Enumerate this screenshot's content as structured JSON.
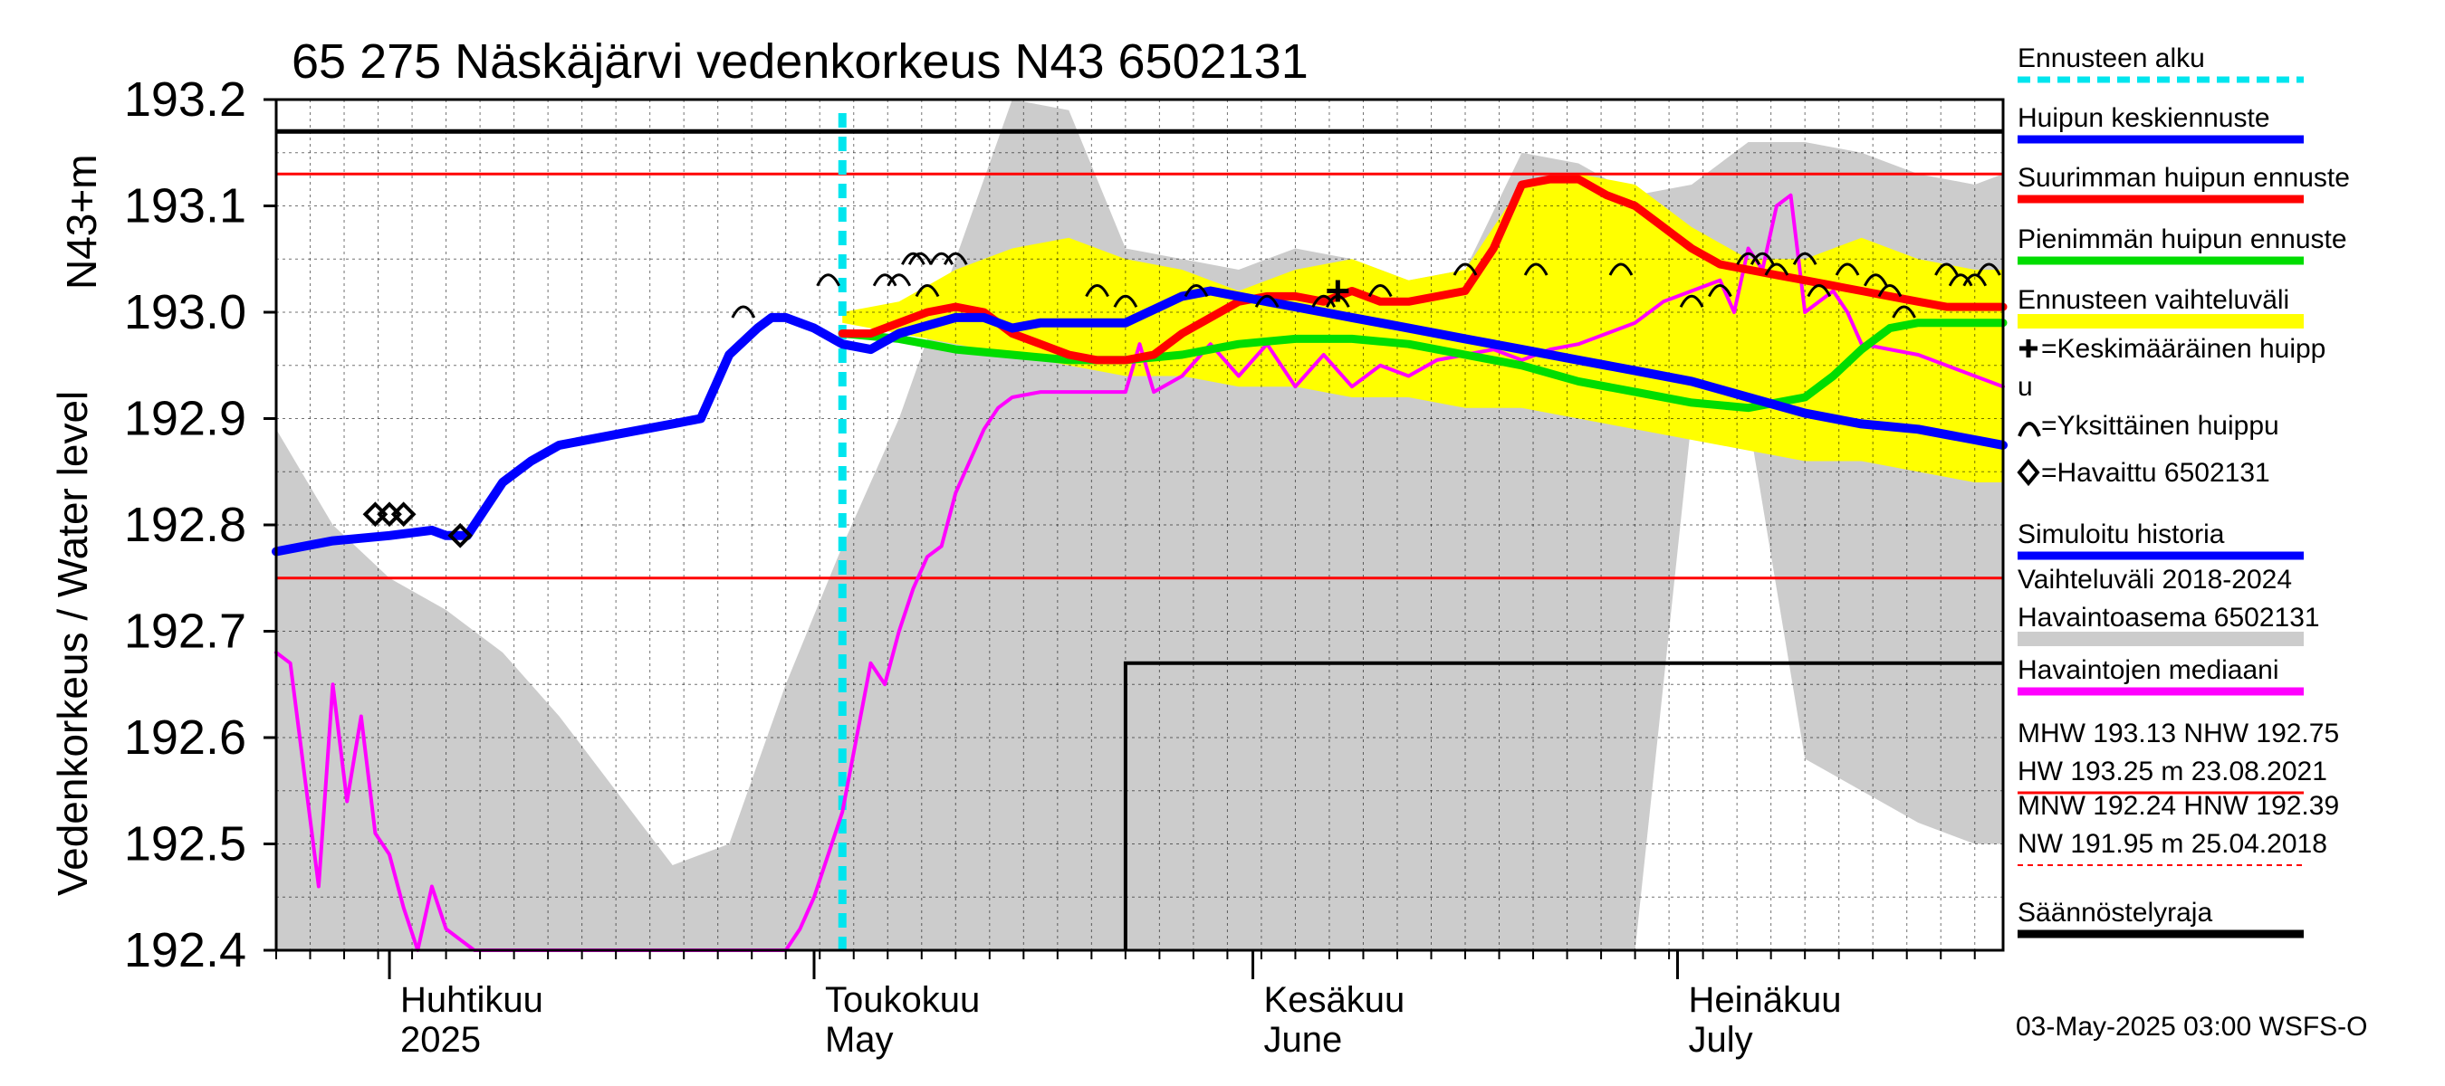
{
  "chart_data": {
    "type": "line",
    "title": "65 275 Näskäjärvi vedenkorkeus N43 6502131",
    "ylabel": "Vedenkorkeus / Water level",
    "yunit": "N43+m",
    "ylim": [
      192.4,
      193.2
    ],
    "yticks": [
      192.4,
      192.5,
      192.6,
      192.7,
      192.8,
      192.9,
      193.0,
      193.1,
      193.2
    ],
    "xlim_days": [
      0,
      122
    ],
    "x_axis_note": "x values are days since 2025-03-24",
    "month_labels": [
      {
        "line1": "Huhtikuu",
        "line2": "2025",
        "day": 8
      },
      {
        "line1": "Toukokuu",
        "line2": "May",
        "day": 38
      },
      {
        "line1": "Kesäkuu",
        "line2": "June",
        "day": 69
      },
      {
        "line1": "Heinäkuu",
        "line2": "July",
        "day": 99
      }
    ],
    "forecast_start_day": 40,
    "reference_lines": [
      {
        "name": "MHW",
        "value": 193.13,
        "color": "#ff0000"
      },
      {
        "name": "NHW",
        "value": 192.75,
        "color": "#ff0000"
      },
      {
        "name": "Säännöstelyraja upper",
        "value": 193.17,
        "color": "#000000"
      }
    ],
    "regulation_limit": {
      "x": [
        60,
        60,
        122
      ],
      "y": [
        192.4,
        192.67,
        192.67
      ]
    },
    "historical_range": {
      "x": [
        0,
        4,
        8,
        12,
        16,
        20,
        24,
        28,
        32,
        36,
        40,
        44,
        48,
        52,
        56,
        60,
        64,
        68,
        72,
        76,
        80,
        84,
        88,
        92,
        96,
        100,
        104,
        108,
        112,
        116,
        120,
        122
      ],
      "upper": [
        192.89,
        192.8,
        192.75,
        192.72,
        192.68,
        192.62,
        192.55,
        192.48,
        192.5,
        192.65,
        192.78,
        192.9,
        193.05,
        193.2,
        193.19,
        193.06,
        193.05,
        193.04,
        193.06,
        193.05,
        193.03,
        193.04,
        193.15,
        193.14,
        193.11,
        193.12,
        193.16,
        193.16,
        193.15,
        193.13,
        193.12,
        193.13
      ],
      "lower": [
        192.4,
        192.4,
        192.4,
        192.4,
        192.4,
        192.4,
        192.4,
        192.4,
        192.4,
        192.4,
        192.4,
        192.4,
        192.4,
        192.4,
        192.4,
        192.4,
        192.4,
        192.4,
        192.4,
        192.4,
        192.4,
        192.4,
        192.4,
        192.4,
        192.4,
        192.9,
        192.9,
        192.58,
        192.55,
        192.52,
        192.5,
        192.5
      ]
    },
    "forecast_range": {
      "x": [
        40,
        44,
        48,
        52,
        56,
        60,
        64,
        68,
        72,
        76,
        80,
        84,
        88,
        92,
        96,
        100,
        104,
        108,
        112,
        116,
        120,
        122
      ],
      "upper": [
        193.0,
        193.01,
        193.04,
        193.06,
        193.07,
        193.05,
        193.04,
        193.02,
        193.04,
        193.05,
        193.03,
        193.04,
        193.12,
        193.13,
        193.12,
        193.08,
        193.05,
        193.05,
        193.07,
        193.05,
        193.04,
        193.04
      ],
      "lower": [
        192.99,
        192.98,
        192.97,
        192.96,
        192.95,
        192.94,
        192.94,
        192.93,
        192.93,
        192.92,
        192.92,
        192.91,
        192.91,
        192.9,
        192.89,
        192.88,
        192.87,
        192.86,
        192.86,
        192.85,
        192.84,
        192.84
      ]
    },
    "series": [
      {
        "name": "Simuloitu historia",
        "color": "#0000ff",
        "x": [
          0,
          4,
          8,
          11,
          12,
          13.5,
          16,
          18,
          20,
          24,
          28,
          30,
          32,
          34,
          35,
          36,
          38,
          40,
          42,
          44,
          48,
          50,
          52,
          54,
          56,
          60,
          64,
          66,
          68,
          70,
          72,
          74,
          76,
          78,
          80,
          84,
          88,
          92,
          96,
          100,
          104,
          108,
          112,
          116,
          120,
          122
        ],
        "y": [
          192.775,
          192.785,
          192.79,
          192.795,
          192.79,
          192.79,
          192.84,
          192.86,
          192.875,
          192.885,
          192.895,
          192.9,
          192.96,
          192.985,
          192.995,
          192.995,
          192.985,
          192.97,
          192.965,
          192.98,
          192.995,
          192.995,
          192.985,
          192.99,
          192.99,
          192.99,
          193.015,
          193.02,
          193.015,
          193.01,
          193.005,
          193.0,
          192.995,
          192.99,
          192.985,
          192.975,
          192.965,
          192.955,
          192.945,
          192.935,
          192.92,
          192.905,
          192.895,
          192.89,
          192.88,
          192.875
        ]
      },
      {
        "name": "Suurimman huipun ennuste",
        "color": "#ff0000",
        "x": [
          40,
          42,
          44,
          46,
          48,
          50,
          52,
          54,
          56,
          58,
          60,
          62,
          64,
          66,
          68,
          70,
          72,
          74,
          76,
          78,
          80,
          82,
          84,
          86,
          88,
          90,
          92,
          94,
          96,
          98,
          100,
          102,
          104,
          106,
          108,
          110,
          112,
          114,
          116,
          118,
          120,
          122
        ],
        "y": [
          192.98,
          192.98,
          192.99,
          193.0,
          193.005,
          193.0,
          192.98,
          192.97,
          192.96,
          192.955,
          192.955,
          192.96,
          192.98,
          192.995,
          193.01,
          193.015,
          193.015,
          193.01,
          193.02,
          193.01,
          193.01,
          193.015,
          193.02,
          193.06,
          193.12,
          193.125,
          193.125,
          193.11,
          193.1,
          193.08,
          193.06,
          193.045,
          193.04,
          193.035,
          193.03,
          193.025,
          193.02,
          193.015,
          193.01,
          193.005,
          193.005,
          193.005
        ]
      },
      {
        "name": "Pienimmän huipun ennuste",
        "color": "#00dd00",
        "x": [
          40,
          44,
          48,
          52,
          56,
          60,
          64,
          68,
          72,
          76,
          80,
          84,
          88,
          92,
          96,
          100,
          104,
          108,
          110,
          112,
          114,
          116,
          118,
          120,
          122
        ],
        "y": [
          192.98,
          192.975,
          192.965,
          192.96,
          192.955,
          192.955,
          192.96,
          192.97,
          192.975,
          192.975,
          192.97,
          192.96,
          192.95,
          192.935,
          192.925,
          192.915,
          192.91,
          192.92,
          192.94,
          192.965,
          192.985,
          192.99,
          192.99,
          192.99,
          192.99
        ]
      },
      {
        "name": "Havaintojen mediaani",
        "color": "#ff00ff",
        "x": [
          0,
          1,
          3,
          4,
          5,
          6,
          7,
          8,
          9,
          10,
          11,
          12,
          13,
          14,
          15,
          16,
          36,
          37,
          38,
          39,
          40,
          41,
          42,
          43,
          44,
          45,
          46,
          47,
          48,
          49,
          50,
          51,
          52,
          54,
          56,
          58,
          60,
          61,
          62,
          64,
          66,
          68,
          70,
          72,
          74,
          76,
          78,
          80,
          82,
          84,
          86,
          88,
          90,
          92,
          94,
          96,
          98,
          100,
          102,
          103,
          104,
          105,
          106,
          107,
          108,
          110,
          111,
          112,
          114,
          116,
          118,
          120,
          122
        ],
        "y": [
          192.68,
          192.67,
          192.46,
          192.65,
          192.54,
          192.62,
          192.51,
          192.49,
          192.44,
          192.38,
          192.46,
          192.42,
          192.41,
          192.4,
          192.4,
          192.39,
          192.4,
          192.42,
          192.45,
          192.49,
          192.53,
          192.6,
          192.67,
          192.65,
          192.7,
          192.74,
          192.77,
          192.78,
          192.83,
          192.86,
          192.89,
          192.91,
          192.92,
          192.925,
          192.925,
          192.925,
          192.925,
          192.97,
          192.925,
          192.94,
          192.97,
          192.94,
          192.97,
          192.93,
          192.96,
          192.93,
          192.95,
          192.94,
          192.955,
          192.96,
          192.965,
          192.955,
          192.965,
          192.97,
          192.98,
          192.99,
          193.01,
          193.02,
          193.03,
          193.0,
          193.06,
          193.04,
          193.1,
          193.11,
          193.0,
          193.02,
          193.0,
          192.97,
          192.965,
          192.96,
          192.95,
          192.94,
          192.93
        ]
      }
    ],
    "observed_points": {
      "name": "Havaittu 6502131",
      "x": [
        7,
        8,
        9,
        13
      ],
      "y": [
        192.81,
        192.81,
        192.81,
        192.79
      ]
    },
    "mean_peak": {
      "name": "Keskimääräinen huippu",
      "x": [
        75
      ],
      "y": [
        193.02
      ]
    },
    "individual_peaks": {
      "name": "Yksittäinen huippu",
      "x": [
        33,
        39,
        43,
        44,
        45,
        45.5,
        46,
        47,
        48,
        58,
        60,
        65,
        70,
        74,
        75,
        78,
        84,
        89,
        95,
        100,
        102,
        104,
        105,
        106,
        108,
        109,
        111,
        113,
        114,
        115,
        118,
        119,
        120,
        121
      ],
      "y": [
        193.0,
        193.03,
        193.03,
        193.03,
        193.05,
        193.05,
        193.02,
        193.05,
        193.05,
        193.02,
        193.01,
        193.02,
        193.01,
        193.01,
        193.01,
        193.02,
        193.04,
        193.04,
        193.04,
        193.01,
        193.02,
        193.05,
        193.05,
        193.04,
        193.05,
        193.02,
        193.04,
        193.03,
        193.02,
        193.0,
        193.04,
        193.03,
        193.03,
        193.04
      ]
    },
    "legend": [
      {
        "label": "Ennusteen alku",
        "color": "#00e5ee",
        "style": "dash"
      },
      {
        "label": "Huipun keskiennuste",
        "color": "#0000ff",
        "style": "line"
      },
      {
        "label": "Suurimman huipun ennuste",
        "color": "#ff0000",
        "style": "line"
      },
      {
        "label": "Pienimmän huipun ennuste",
        "color": "#00dd00",
        "style": "line"
      },
      {
        "label": "Ennusteen vaihteluväli",
        "color": "#ffff00",
        "style": "band"
      },
      {
        "label": "=Keskimääräinen huipp",
        "label2": "u",
        "style": "plus"
      },
      {
        "label": "=Yksittäinen huippu",
        "style": "arc"
      },
      {
        "label": "=Havaittu 6502131",
        "style": "diamond"
      },
      {
        "label": "Simuloitu historia",
        "color": "#0000ff",
        "style": "line"
      },
      {
        "label": "Vaihteluväli 2018-2024",
        "label2": " Havaintoasema 6502131",
        "color": "#cccccc",
        "style": "band"
      },
      {
        "label": "Havaintojen mediaani",
        "color": "#ff00ff",
        "style": "line"
      },
      {
        "label": "MHW 193.13 NHW 192.75",
        "label2": "HW 193.25 m 23.08.2021",
        "color": "#ff0000",
        "style": "thin"
      },
      {
        "label": "MNW 192.24 HNW 192.39",
        "label2": "NW 191.95 m 25.04.2018",
        "color": "#ff0000",
        "style": "dashthin"
      },
      {
        "label": "Säännöstelyraja",
        "color": "#000000",
        "style": "line"
      }
    ],
    "footer": "03-May-2025 03:00 WSFS-O"
  }
}
